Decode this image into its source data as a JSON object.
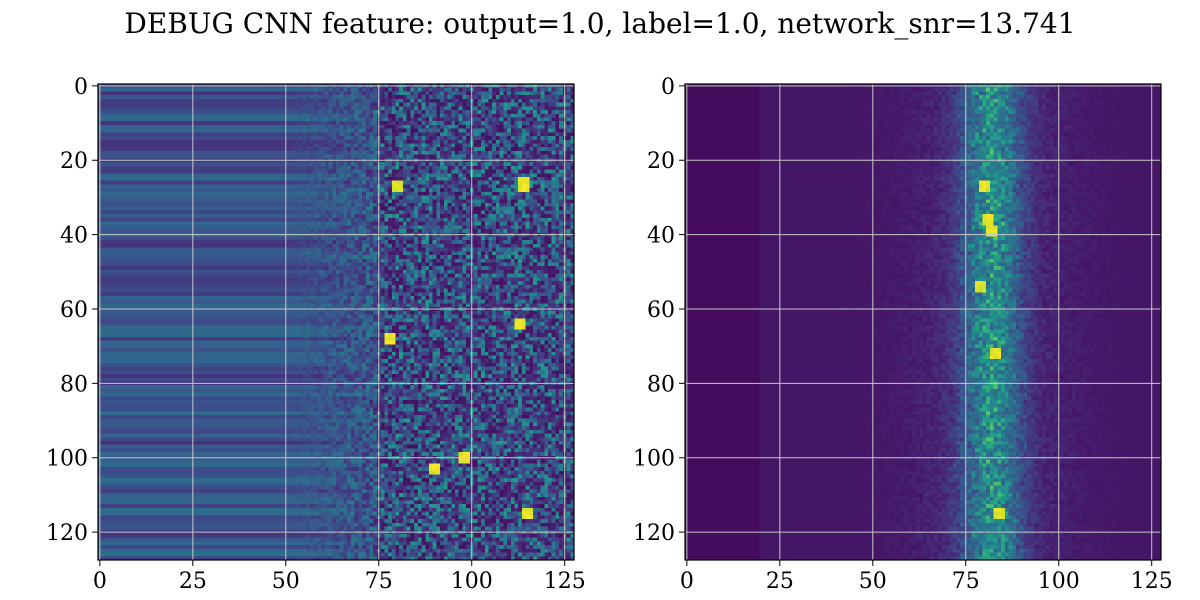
{
  "title": "DEBUG CNN feature: output=1.0, label=1.0, network_snr=13.741",
  "chart_data": [
    {
      "type": "heatmap",
      "colormap": "viridis",
      "grid": true,
      "grid_color": "#c8c8c8",
      "frame_color": "#000000",
      "x_range": [
        -0.5,
        127.5
      ],
      "y_range": [
        127.5,
        -0.5
      ],
      "y_inverted": true,
      "matrix_size": [
        128,
        128
      ],
      "value_range": [
        0,
        1
      ],
      "xticks": [
        0,
        25,
        50,
        75,
        100,
        125
      ],
      "yticks": [
        0,
        20,
        40,
        60,
        80,
        100,
        120
      ],
      "description_of_values": {
        "background_level": 0.25,
        "structure": "horizontal bands across columns 0-75, noisy speckle with bright spots across columns 75-127",
        "bright_spots": [
          [
            80,
            27
          ],
          [
            114,
            26
          ],
          [
            114,
            27
          ],
          [
            113,
            64
          ],
          [
            78,
            68
          ],
          [
            98,
            100
          ],
          [
            115,
            115
          ],
          [
            90,
            103
          ]
        ]
      }
    },
    {
      "type": "heatmap",
      "colormap": "viridis",
      "grid": true,
      "grid_color": "#c8c8c8",
      "frame_color": "#000000",
      "x_range": [
        -0.5,
        127.5
      ],
      "y_range": [
        127.5,
        -0.5
      ],
      "y_inverted": true,
      "matrix_size": [
        128,
        128
      ],
      "value_range": [
        0,
        1
      ],
      "xticks": [
        0,
        25,
        50,
        75,
        100,
        125
      ],
      "yticks": [
        0,
        20,
        40,
        60,
        80,
        100,
        120
      ],
      "description_of_values": {
        "background_level": 0.05,
        "structure": "dark field with a bright vertical ridge centred near column 82 spanning all rows",
        "ridge_center_x": 82,
        "bright_spots": [
          [
            83,
            72
          ],
          [
            81,
            36
          ],
          [
            82,
            39
          ],
          [
            80,
            27
          ],
          [
            84,
            115
          ],
          [
            79,
            54
          ]
        ]
      }
    }
  ]
}
